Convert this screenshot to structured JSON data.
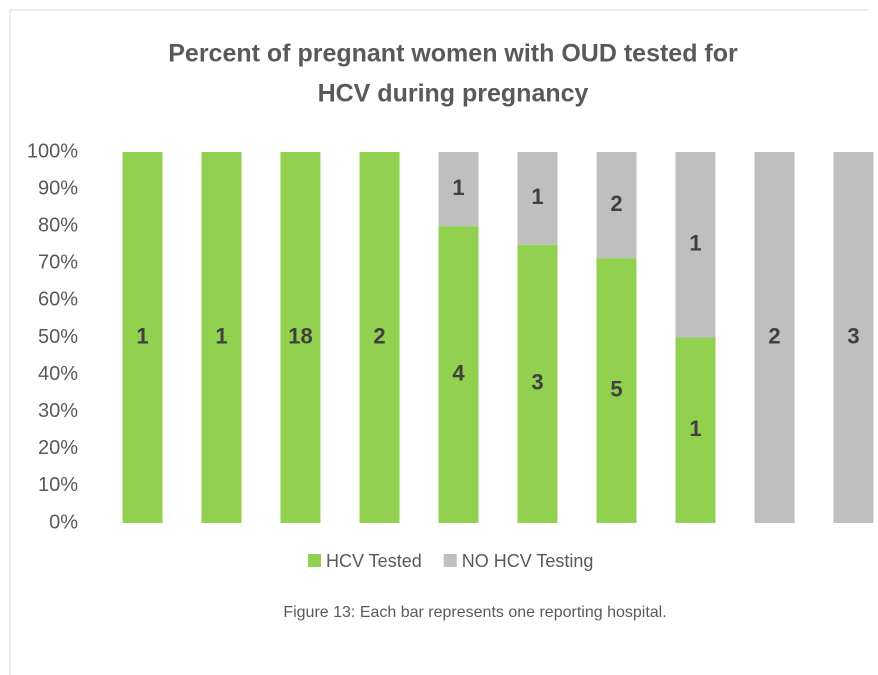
{
  "chart_data": {
    "type": "stacked_bar_100",
    "title": [
      "Percent of pregnant women with OUD tested for",
      "HCV during pregnancy"
    ],
    "categories": [
      null,
      null,
      null,
      null,
      null,
      null,
      null,
      null,
      null,
      null
    ],
    "series": [
      {
        "name": "HCV Tested",
        "color": "#92d050",
        "values": [
          100,
          100,
          100,
          100,
          80,
          75,
          71.4,
          50,
          0,
          0
        ],
        "counts": [
          1,
          1,
          18,
          2,
          4,
          3,
          5,
          1,
          null,
          null
        ]
      },
      {
        "name": "NO HCV Testing",
        "color": "#bfbfbf",
        "values": [
          0,
          0,
          0,
          0,
          20,
          25,
          28.6,
          50,
          100,
          100
        ],
        "counts": [
          null,
          null,
          null,
          null,
          1,
          1,
          2,
          1,
          2,
          3
        ]
      }
    ],
    "ylim": [
      0,
      100
    ],
    "yticks": [
      {
        "value": 0,
        "label": "0%"
      },
      {
        "value": 10,
        "label": "10%"
      },
      {
        "value": 20,
        "label": "20%"
      },
      {
        "value": 30,
        "label": "30%"
      },
      {
        "value": 40,
        "label": "40%"
      },
      {
        "value": 50,
        "label": "50%"
      },
      {
        "value": 60,
        "label": "60%"
      },
      {
        "value": 70,
        "label": "70%"
      },
      {
        "value": 80,
        "label": "80%"
      },
      {
        "value": 90,
        "label": "90%"
      },
      {
        "value": 100,
        "label": "100%"
      }
    ],
    "legend": "bottom",
    "caption": "Figure 13: Each bar represents one reporting hospital."
  }
}
